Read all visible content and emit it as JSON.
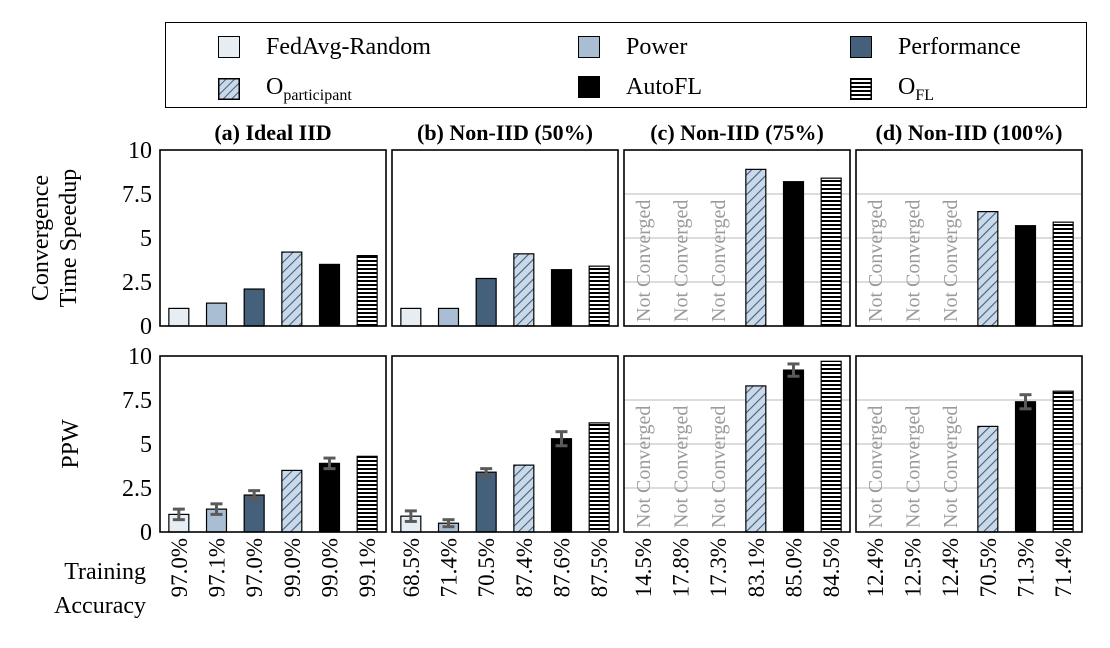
{
  "legend": {
    "items": [
      {
        "key": "fedavg",
        "label": "FedAvg-Random",
        "sub": ""
      },
      {
        "key": "power",
        "label": "Power",
        "sub": ""
      },
      {
        "key": "performance",
        "label": "Performance",
        "sub": ""
      },
      {
        "key": "oparticipant",
        "label": "O",
        "sub": "participant"
      },
      {
        "key": "autofl",
        "label": "AutoFL",
        "sub": ""
      },
      {
        "key": "ofl",
        "label": "O",
        "sub": "FL"
      }
    ]
  },
  "colors": {
    "fedavg": "#e6eef4",
    "power": "#a9bed3",
    "performance": "#44607b",
    "oparticipant": "#c9d9ea",
    "autofl": "#000000",
    "ofl": "#ffffff",
    "not_converged_text": "#9a9a9a",
    "grid": "#c8c8c8"
  },
  "row_labels": {
    "speedup": "Convergence\nTime Speedup",
    "ppw": "PPW",
    "accuracy": "Training\nAccuracy"
  },
  "not_converged_label": "Not Converged",
  "chart_data": [
    {
      "type": "bar",
      "title": "(a) Ideal IID",
      "ylabel": "Convergence Time Speedup",
      "ylim": [
        0,
        10
      ],
      "yticks": [
        "0",
        "2.5",
        "5",
        "7.5",
        "10"
      ],
      "categories": [
        "FedAvg-Random",
        "Power",
        "Performance",
        "Oparticipant",
        "AutoFL",
        "OFL"
      ],
      "values": [
        1.0,
        1.3,
        2.1,
        4.2,
        3.5,
        4.0
      ],
      "converged": [
        true,
        true,
        true,
        true,
        true,
        true
      ]
    },
    {
      "type": "bar",
      "title": "(b) Non-IID (50%)",
      "ylim": [
        0,
        10
      ],
      "categories": [
        "FedAvg-Random",
        "Power",
        "Performance",
        "Oparticipant",
        "AutoFL",
        "OFL"
      ],
      "values": [
        1.0,
        1.0,
        2.7,
        4.1,
        3.2,
        3.4
      ],
      "converged": [
        true,
        true,
        true,
        true,
        true,
        true
      ]
    },
    {
      "type": "bar",
      "title": "(c) Non-IID (75%)",
      "ylim": [
        0,
        10
      ],
      "categories": [
        "FedAvg-Random",
        "Power",
        "Performance",
        "Oparticipant",
        "AutoFL",
        "OFL"
      ],
      "values": [
        null,
        null,
        null,
        8.9,
        8.2,
        8.4
      ],
      "converged": [
        false,
        false,
        false,
        true,
        true,
        true
      ]
    },
    {
      "type": "bar",
      "title": "(d) Non-IID (100%)",
      "ylim": [
        0,
        10
      ],
      "categories": [
        "FedAvg-Random",
        "Power",
        "Performance",
        "Oparticipant",
        "AutoFL",
        "OFL"
      ],
      "values": [
        null,
        null,
        null,
        6.5,
        5.7,
        5.9
      ],
      "converged": [
        false,
        false,
        false,
        true,
        true,
        true
      ]
    },
    {
      "type": "bar",
      "ylabel": "PPW",
      "ylim": [
        0,
        10
      ],
      "yticks": [
        "0",
        "2.5",
        "5",
        "7.5",
        "10"
      ],
      "categories": [
        "FedAvg-Random",
        "Power",
        "Performance",
        "Oparticipant",
        "AutoFL",
        "OFL"
      ],
      "values": [
        1.0,
        1.3,
        2.1,
        3.5,
        3.9,
        4.3
      ],
      "errors": [
        0.3,
        0.3,
        0.25,
        0,
        0.3,
        0
      ],
      "converged": [
        true,
        true,
        true,
        true,
        true,
        true
      ],
      "accuracy": [
        "97.0%",
        "97.1%",
        "97.0%",
        "99.0%",
        "99.0%",
        "99.1%"
      ]
    },
    {
      "type": "bar",
      "ylim": [
        0,
        10
      ],
      "categories": [
        "FedAvg-Random",
        "Power",
        "Performance",
        "Oparticipant",
        "AutoFL",
        "OFL"
      ],
      "values": [
        0.9,
        0.5,
        3.4,
        3.8,
        5.3,
        6.2
      ],
      "errors": [
        0.3,
        0.2,
        0.2,
        0,
        0.4,
        0
      ],
      "converged": [
        true,
        true,
        true,
        true,
        true,
        true
      ],
      "accuracy": [
        "68.5%",
        "71.4%",
        "70.5%",
        "87.4%",
        "87.6%",
        "87.5%"
      ]
    },
    {
      "type": "bar",
      "ylim": [
        0,
        10
      ],
      "categories": [
        "FedAvg-Random",
        "Power",
        "Performance",
        "Oparticipant",
        "AutoFL",
        "OFL"
      ],
      "values": [
        null,
        null,
        null,
        8.3,
        9.2,
        9.7
      ],
      "errors": [
        0,
        0,
        0,
        0,
        0.35,
        0
      ],
      "converged": [
        false,
        false,
        false,
        true,
        true,
        true
      ],
      "accuracy": [
        "14.5%",
        "17.8%",
        "17.3%",
        "83.1%",
        "85.0%",
        "84.5%"
      ]
    },
    {
      "type": "bar",
      "ylim": [
        0,
        10
      ],
      "categories": [
        "FedAvg-Random",
        "Power",
        "Performance",
        "Oparticipant",
        "AutoFL",
        "OFL"
      ],
      "values": [
        null,
        null,
        null,
        6.0,
        7.4,
        8.0
      ],
      "errors": [
        0,
        0,
        0,
        0,
        0.4,
        0
      ],
      "converged": [
        false,
        false,
        false,
        true,
        true,
        true
      ],
      "accuracy": [
        "12.4%",
        "12.5%",
        "12.4%",
        "70.5%",
        "71.3%",
        "71.4%"
      ]
    }
  ]
}
